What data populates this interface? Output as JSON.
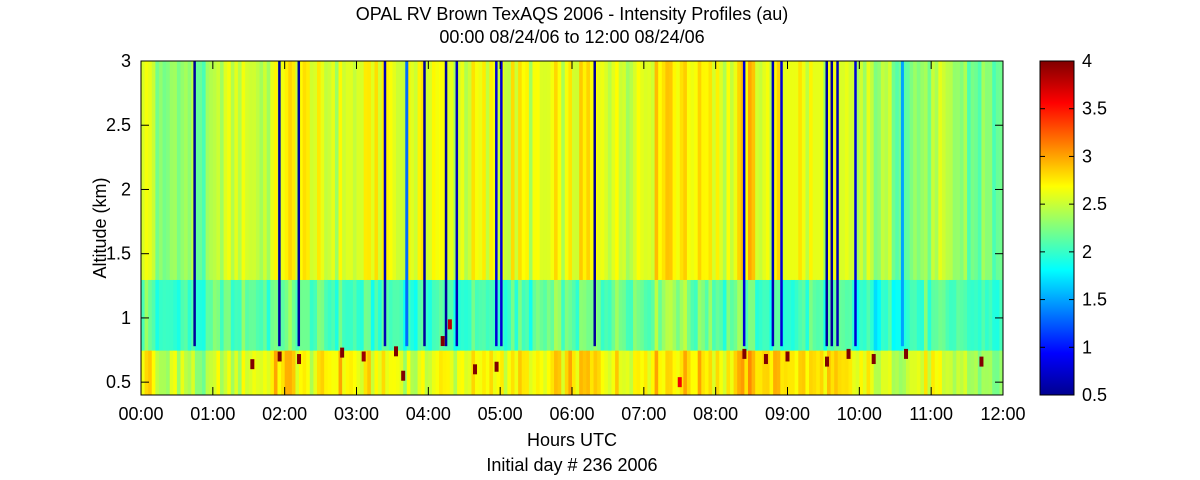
{
  "chart_data": {
    "type": "heatmap",
    "title": "OPAL RV Brown TexAQS 2006 - Intensity Profiles (au)",
    "subtitle": "00:00 08/24/06 to 12:00 08/24/06",
    "xlabel": "Hours UTC",
    "xlabel2": "Initial day # 236  2006",
    "ylabel": "Altitude (km)",
    "xlim": [
      0,
      12
    ],
    "ylim": [
      0.4,
      3
    ],
    "clim": [
      0.5,
      4
    ],
    "colormap": "jet",
    "x_ticks": [
      0,
      1,
      2,
      3,
      4,
      5,
      6,
      7,
      8,
      9,
      10,
      11,
      12
    ],
    "x_tick_labels": [
      "00:00",
      "01:00",
      "02:00",
      "03:00",
      "04:00",
      "05:00",
      "06:00",
      "07:00",
      "08:00",
      "09:00",
      "10:00",
      "11:00",
      "12:00"
    ],
    "y_ticks": [
      0.5,
      1,
      1.5,
      2,
      2.5,
      3
    ],
    "y_tick_labels": [
      "0.5",
      "1",
      "1.5",
      "2",
      "2.5",
      "3"
    ],
    "colorbar_ticks": [
      0.5,
      1,
      1.5,
      2,
      2.5,
      3,
      3.5,
      4
    ],
    "colorbar_tick_labels": [
      "0.5",
      "1",
      "1.5",
      "2",
      "2.5",
      "3",
      "3.5",
      "4"
    ],
    "profile_times": [
      0.15,
      0.3,
      0.45,
      0.6,
      0.9,
      1.1,
      1.3,
      1.5,
      1.7,
      2.0,
      2.4,
      2.6,
      2.8,
      3.0,
      3.2,
      3.6,
      3.8,
      4.1,
      4.3,
      4.6,
      4.8,
      5.2,
      5.4,
      5.6,
      5.8,
      6.0,
      6.2,
      6.5,
      6.7,
      6.9,
      7.1,
      7.3,
      7.7,
      7.9,
      8.1,
      8.25,
      8.5,
      8.7,
      9.1,
      9.3,
      9.8,
      10.1,
      10.3,
      10.5,
      10.8,
      11.0,
      11.2,
      11.4,
      11.6,
      11.8
    ],
    "profile_values_lowlevel": [
      2.8,
      2.2,
      2.6,
      2.5,
      2.2,
      2.6,
      2.4,
      2.7,
      2.6,
      2.9,
      2.6,
      2.7,
      2.8,
      2.6,
      2.7,
      2.6,
      2.5,
      2.7,
      2.6,
      2.6,
      2.7,
      2.7,
      2.7,
      2.6,
      2.7,
      2.8,
      2.8,
      2.7,
      2.7,
      2.7,
      2.8,
      2.8,
      2.8,
      2.8,
      2.7,
      2.8,
      2.9,
      2.8,
      2.8,
      2.8,
      2.7,
      2.6,
      2.5,
      2.5,
      2.6,
      2.6,
      2.4,
      2.5,
      2.4,
      2.3
    ],
    "profile_values_boundary": [
      2.2,
      1.9,
      2.0,
      2.1,
      1.9,
      2.2,
      2.0,
      2.2,
      2.1,
      2.2,
      2.1,
      2.0,
      2.1,
      2.0,
      2.0,
      2.1,
      2.0,
      2.1,
      2.0,
      2.0,
      2.0,
      2.1,
      2.0,
      2.1,
      2.2,
      2.1,
      2.2,
      2.1,
      2.3,
      2.2,
      2.2,
      2.5,
      2.2,
      2.3,
      2.1,
      2.2,
      2.1,
      2.0,
      2.0,
      2.1,
      2.0,
      1.9,
      1.9,
      2.0,
      2.0,
      2.1,
      2.0,
      2.1,
      2.0,
      2.0
    ],
    "profile_values_upper": [
      2.6,
      2.1,
      2.4,
      2.3,
      2.2,
      2.5,
      2.5,
      2.6,
      2.4,
      2.7,
      2.6,
      2.5,
      2.6,
      2.5,
      2.7,
      2.6,
      2.6,
      2.7,
      2.5,
      2.6,
      2.6,
      2.6,
      2.6,
      2.5,
      2.6,
      2.6,
      2.7,
      2.6,
      2.6,
      2.6,
      2.7,
      2.9,
      2.7,
      2.8,
      2.6,
      2.6,
      2.8,
      2.6,
      2.7,
      2.6,
      2.5,
      2.4,
      2.4,
      2.3,
      2.3,
      2.3,
      2.4,
      2.3,
      2.2,
      2.2
    ],
    "low_signal_times": [
      0.75,
      1.93,
      2.2,
      3.4,
      3.7,
      3.95,
      4.25,
      4.4,
      4.95,
      5.02,
      6.32,
      8.4,
      8.8,
      8.92,
      9.55,
      9.62,
      9.7,
      9.95,
      10.6
    ],
    "low_signal_values": [
      0.6,
      0.6,
      0.6,
      0.7,
      1.3,
      0.6,
      0.6,
      0.7,
      0.8,
      0.8,
      0.6,
      0.8,
      0.7,
      0.8,
      0.6,
      0.6,
      0.7,
      0.8,
      1.5
    ],
    "high_intensity_spots": [
      {
        "x": 1.55,
        "y": 0.64,
        "value": 4.0
      },
      {
        "x": 1.93,
        "y": 0.7,
        "value": 4.0
      },
      {
        "x": 2.2,
        "y": 0.68,
        "value": 4.0
      },
      {
        "x": 2.8,
        "y": 0.73,
        "value": 4.0
      },
      {
        "x": 3.1,
        "y": 0.7,
        "value": 3.9
      },
      {
        "x": 3.55,
        "y": 0.74,
        "value": 4.0
      },
      {
        "x": 3.65,
        "y": 0.55,
        "value": 4.0
      },
      {
        "x": 4.2,
        "y": 0.82,
        "value": 4.0
      },
      {
        "x": 4.3,
        "y": 0.95,
        "value": 3.8
      },
      {
        "x": 4.65,
        "y": 0.6,
        "value": 4.0
      },
      {
        "x": 4.95,
        "y": 0.62,
        "value": 4.0
      },
      {
        "x": 7.5,
        "y": 0.5,
        "value": 3.6
      },
      {
        "x": 8.4,
        "y": 0.72,
        "value": 4.0
      },
      {
        "x": 8.7,
        "y": 0.68,
        "value": 4.0
      },
      {
        "x": 9.0,
        "y": 0.7,
        "value": 4.0
      },
      {
        "x": 9.55,
        "y": 0.66,
        "value": 4.0
      },
      {
        "x": 9.85,
        "y": 0.72,
        "value": 4.0
      },
      {
        "x": 10.2,
        "y": 0.68,
        "value": 4.0
      },
      {
        "x": 10.65,
        "y": 0.72,
        "value": 4.0
      },
      {
        "x": 11.7,
        "y": 0.66,
        "value": 4.0
      }
    ]
  }
}
